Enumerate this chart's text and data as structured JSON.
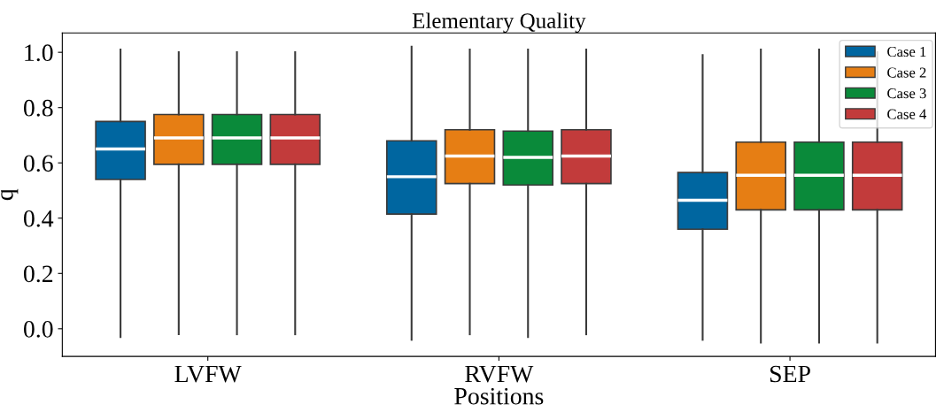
{
  "chart_data": {
    "type": "box",
    "title": "Elementary Quality",
    "xlabel": "Positions",
    "ylabel": "q",
    "categories": [
      "LVFW",
      "RVFW",
      "SEP"
    ],
    "ylim": [
      -0.1,
      1.07
    ],
    "yticks": [
      {
        "value": 0,
        "label": "0.0"
      },
      0.2,
      0.4,
      0.6,
      0.8,
      {
        "value": 1,
        "label": "1.0"
      }
    ],
    "legend": "top right",
    "grid": false,
    "series": [
      {
        "name": "Case 1",
        "color": "#0066a0",
        "boxes": [
          {
            "low": -0.03,
            "q1": 0.54,
            "median": 0.65,
            "q3": 0.75,
            "high": 1.01
          },
          {
            "low": -0.04,
            "q1": 0.415,
            "median": 0.55,
            "q3": 0.68,
            "high": 1.02
          },
          {
            "low": -0.04,
            "q1": 0.36,
            "median": 0.465,
            "q3": 0.565,
            "high": 0.99
          }
        ]
      },
      {
        "name": "Case 2",
        "color": "#e67e14",
        "boxes": [
          {
            "low": -0.02,
            "q1": 0.595,
            "median": 0.69,
            "q3": 0.775,
            "high": 1.0
          },
          {
            "low": -0.02,
            "q1": 0.525,
            "median": 0.625,
            "q3": 0.72,
            "high": 1.01
          },
          {
            "low": -0.05,
            "q1": 0.43,
            "median": 0.555,
            "q3": 0.675,
            "high": 1.01
          }
        ]
      },
      {
        "name": "Case 3",
        "color": "#0a8a3a",
        "boxes": [
          {
            "low": -0.02,
            "q1": 0.595,
            "median": 0.69,
            "q3": 0.775,
            "high": 1.0
          },
          {
            "low": -0.03,
            "q1": 0.52,
            "median": 0.62,
            "q3": 0.715,
            "high": 1.01
          },
          {
            "low": -0.05,
            "q1": 0.43,
            "median": 0.555,
            "q3": 0.675,
            "high": 1.01
          }
        ]
      },
      {
        "name": "Case 4",
        "color": "#c23b3b",
        "boxes": [
          {
            "low": -0.02,
            "q1": 0.595,
            "median": 0.69,
            "q3": 0.775,
            "high": 1.0
          },
          {
            "low": -0.02,
            "q1": 0.525,
            "median": 0.625,
            "q3": 0.72,
            "high": 1.01
          },
          {
            "low": -0.05,
            "q1": 0.43,
            "median": 0.555,
            "q3": 0.675,
            "high": 1.0
          }
        ]
      }
    ]
  }
}
